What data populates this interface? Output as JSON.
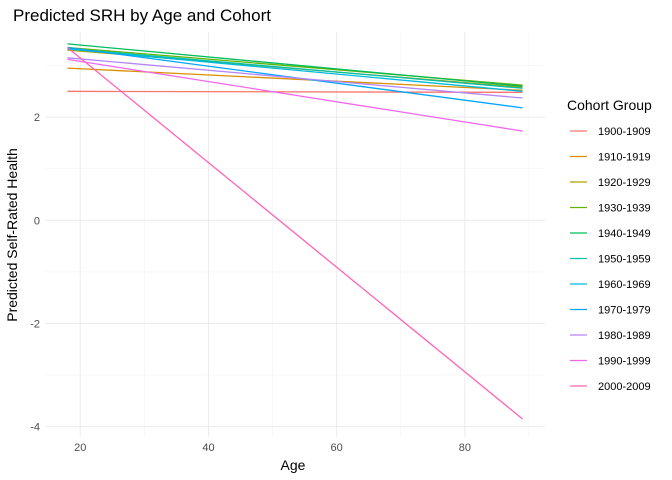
{
  "chart_data": {
    "type": "line",
    "title": "Predicted SRH by Age and Cohort",
    "xlabel": "Age",
    "ylabel": "Predicted Self-Rated Health",
    "xlim": [
      14.5,
      92.5
    ],
    "ylim": [
      -4.2,
      3.65
    ],
    "x_ticks": [
      20,
      40,
      60,
      80
    ],
    "y_ticks": [
      -4,
      -2,
      0,
      2
    ],
    "grid": true,
    "legend_title": "Cohort Group",
    "legend_position": "right",
    "x": [
      18,
      89
    ],
    "series": [
      {
        "name": "1900-1909",
        "color": "#F8766D",
        "values": [
          2.5,
          2.48
        ]
      },
      {
        "name": "1910-1919",
        "color": "#DB8E00",
        "values": [
          2.95,
          2.52
        ]
      },
      {
        "name": "1920-1929",
        "color": "#AEA200",
        "values": [
          3.3,
          2.58
        ]
      },
      {
        "name": "1930-1939",
        "color": "#64B200",
        "values": [
          3.35,
          2.62
        ]
      },
      {
        "name": "1940-1949",
        "color": "#00BD5C",
        "values": [
          3.42,
          2.6
        ]
      },
      {
        "name": "1950-1959",
        "color": "#00C1A7",
        "values": [
          3.33,
          2.56
        ]
      },
      {
        "name": "1960-1969",
        "color": "#00BADE",
        "values": [
          3.32,
          2.5
        ]
      },
      {
        "name": "1970-1979",
        "color": "#00A6FF",
        "values": [
          3.35,
          2.18
        ]
      },
      {
        "name": "1980-1989",
        "color": "#B385FF",
        "values": [
          3.15,
          2.37
        ]
      },
      {
        "name": "1990-1999",
        "color": "#EF67EB",
        "values": [
          3.12,
          1.73
        ]
      },
      {
        "name": "2000-2009",
        "color": "#FF63B6",
        "values": [
          3.35,
          -3.85
        ]
      }
    ]
  }
}
